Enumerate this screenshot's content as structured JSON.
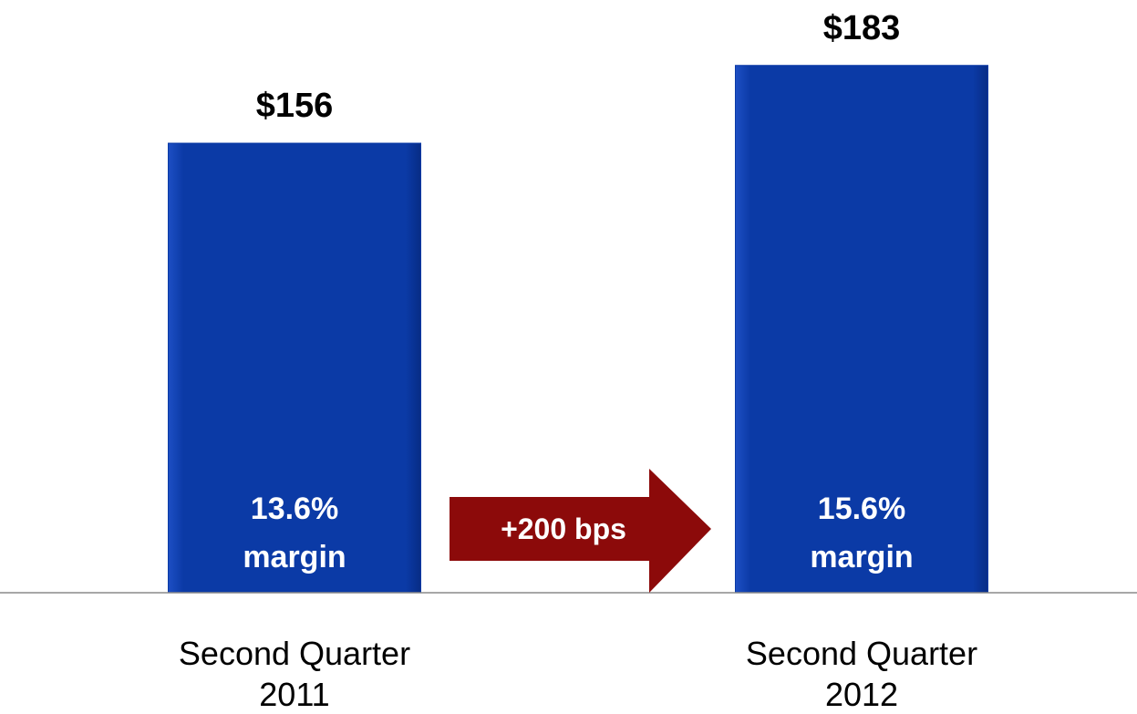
{
  "chart_data": {
    "type": "bar",
    "categories": [
      "Second Quarter 2011",
      "Second Quarter 2012"
    ],
    "values": [
      156,
      183
    ],
    "value_labels": [
      "$156",
      "$183"
    ],
    "bar_annotations": [
      "13.6% margin",
      "15.6% margin"
    ],
    "arrow_annotation": "+200 bps",
    "color": "#0b3aa6",
    "arrow_color": "#8c0a0a",
    "ylim": [
      0,
      200
    ],
    "grid": false
  }
}
